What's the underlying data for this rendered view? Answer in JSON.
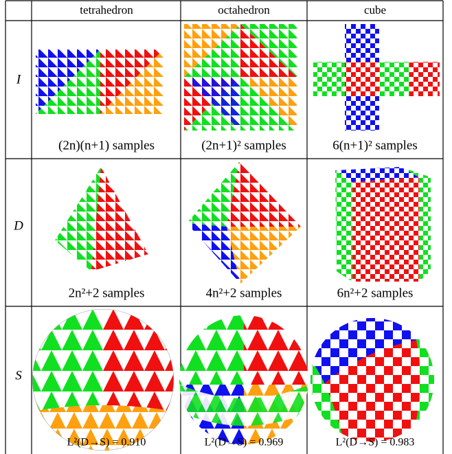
{
  "table": {
    "header": [
      "tetrahedron",
      "octahedron",
      "cube"
    ],
    "rows": [
      {
        "label": "I",
        "captions": [
          "(2n)(n+1) samples",
          "(2n+1)² samples",
          "6(n+1)² samples"
        ]
      },
      {
        "label": "D",
        "captions": [
          "2n²+2 samples",
          "4n²+2 samples",
          "6n²+2 samples"
        ]
      },
      {
        "label": "S",
        "captions": [
          "L²(D→S) = 0.910",
          "L²(D→S) = 0.969",
          "L²(D→S) = 0.983"
        ]
      }
    ]
  }
}
